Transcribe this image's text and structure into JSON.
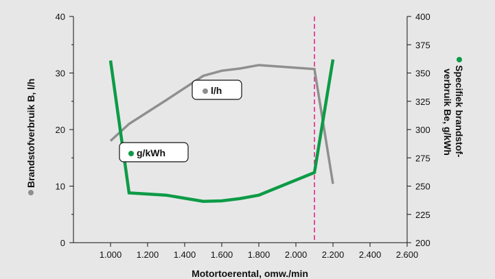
{
  "chart_data": {
    "type": "line",
    "xlabel": "Motortoerental, omw./min",
    "ylabel_left": "Brandstofverbruik B, l/h",
    "ylabel_right_line1": "Specifiek brandstof-",
    "ylabel_right_line2": "verbruik Be, g/kWh",
    "xlim": [
      800,
      2600
    ],
    "xticks": [
      1000,
      1200,
      1400,
      1600,
      1800,
      2000,
      2200,
      2400,
      2600
    ],
    "xtick_labels": [
      "1.000",
      "1.200",
      "1.400",
      "1.600",
      "1.800",
      "2.000",
      "2.200",
      "2.400",
      "2.600"
    ],
    "ylim_left": [
      0,
      40
    ],
    "yticks_left": [
      0,
      10,
      20,
      30,
      40
    ],
    "yticks_left_minor": [
      5,
      15,
      25,
      35
    ],
    "ylim_right": [
      200,
      400
    ],
    "yticks_right": [
      200,
      225,
      250,
      275,
      300,
      325,
      350,
      375,
      400
    ],
    "reference_line_x": 2100,
    "grid": false,
    "series": [
      {
        "name": "l/h",
        "axis": "left",
        "color": "#8f8f8f",
        "x": [
          1000,
          1100,
          1300,
          1500,
          1600,
          1700,
          1800,
          2100,
          2200
        ],
        "y": [
          18,
          21,
          25.2,
          29.5,
          30.4,
          30.8,
          31.4,
          30.7,
          10.4
        ]
      },
      {
        "name": "g/kWh",
        "axis": "right",
        "color": "#0d9b46",
        "x": [
          1000,
          1100,
          1300,
          1500,
          1600,
          1700,
          1800,
          2100,
          2200
        ],
        "y": [
          361,
          244,
          242,
          236.5,
          237,
          239,
          242,
          262,
          362
        ]
      }
    ],
    "legend": [
      {
        "label": "l/h",
        "series": "l/h"
      },
      {
        "label": "g/kWh",
        "series": "g/kWh"
      }
    ],
    "colors": {
      "background": "#e7e7e8",
      "axis": "#111111",
      "reference_line": "#e5177e",
      "gray_series": "#8f8f8f",
      "green_series": "#0d9b46"
    }
  }
}
